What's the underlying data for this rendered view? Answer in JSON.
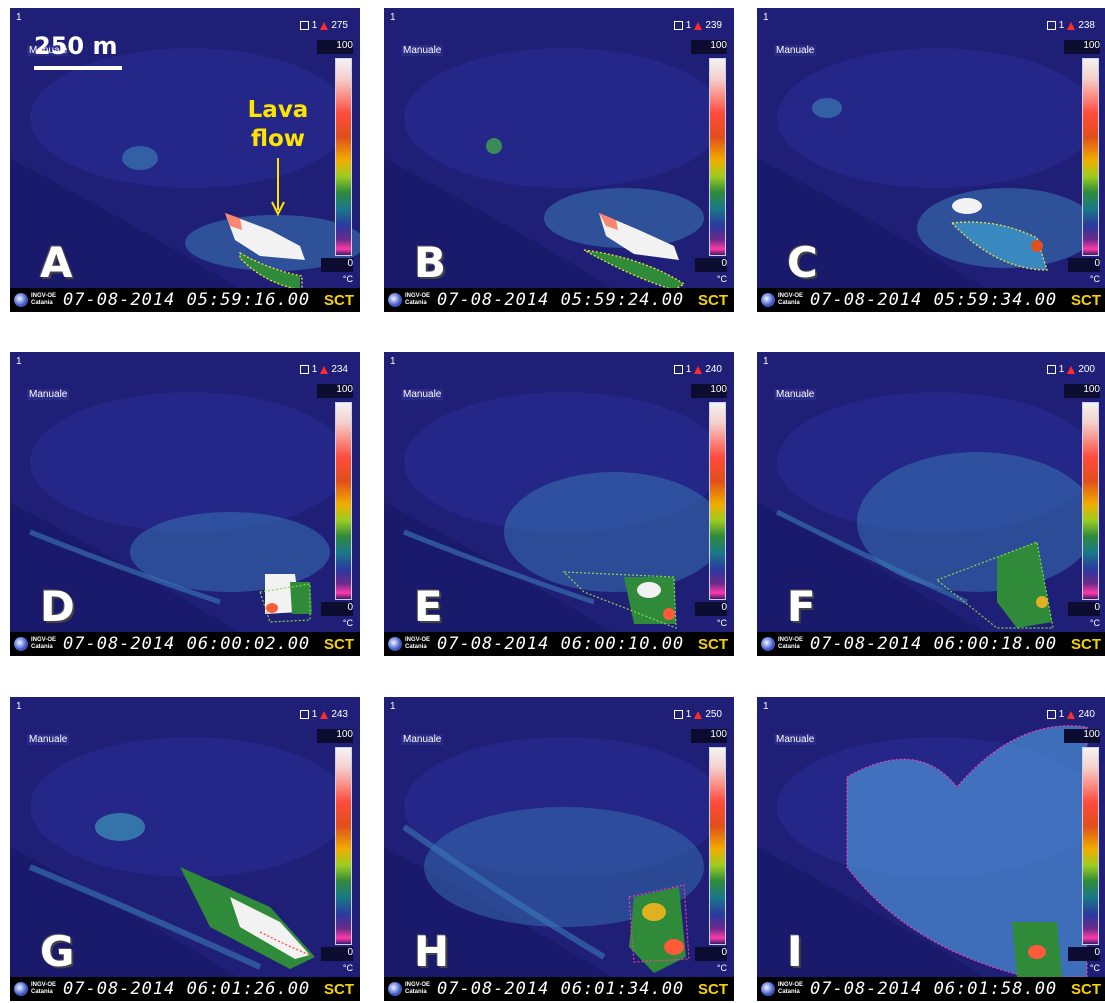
{
  "panels": [
    {
      "letter": "A",
      "camera": "1",
      "mode": "Manuale",
      "channel": "1",
      "max": "275",
      "scale_top": "100",
      "scale_bottom": "0",
      "unit": "°C",
      "org": "INGV-OE Catania",
      "timestamp": "07-08-2014 05:59:16.00",
      "station": "SCT"
    },
    {
      "letter": "B",
      "camera": "1",
      "mode": "Manuale",
      "channel": "1",
      "max": "239",
      "scale_top": "100",
      "scale_bottom": "0",
      "unit": "°C",
      "org": "INGV-OE Catania",
      "timestamp": "07-08-2014 05:59:24.00",
      "station": "SCT"
    },
    {
      "letter": "C",
      "camera": "1",
      "mode": "Manuale",
      "channel": "1",
      "max": "238",
      "scale_top": "100",
      "scale_bottom": "0",
      "unit": "°C",
      "org": "INGV-OE Catania",
      "timestamp": "07-08-2014 05:59:34.00",
      "station": "SCT"
    },
    {
      "letter": "D",
      "camera": "1",
      "mode": "Manuale",
      "channel": "1",
      "max": "234",
      "scale_top": "100",
      "scale_bottom": "0",
      "unit": "°C",
      "org": "INGV-OE Catania",
      "timestamp": "07-08-2014 06:00:02.00",
      "station": "SCT"
    },
    {
      "letter": "E",
      "camera": "1",
      "mode": "Manuale",
      "channel": "1",
      "max": "240",
      "scale_top": "100",
      "scale_bottom": "0",
      "unit": "°C",
      "org": "INGV-OE Catania",
      "timestamp": "07-08-2014 06:00:10.00",
      "station": "SCT"
    },
    {
      "letter": "F",
      "camera": "1",
      "mode": "Manuale",
      "channel": "1",
      "max": "200",
      "scale_top": "100",
      "scale_bottom": "0",
      "unit": "°C",
      "org": "INGV-OE Catania",
      "timestamp": "07-08-2014 06:00:18.00",
      "station": "SCT"
    },
    {
      "letter": "G",
      "camera": "1",
      "mode": "Manuale",
      "channel": "1",
      "max": "243",
      "scale_top": "100",
      "scale_bottom": "0",
      "unit": "°C",
      "org": "INGV-OE Catania",
      "timestamp": "07-08-2014 06:01:26.00",
      "station": "SCT"
    },
    {
      "letter": "H",
      "camera": "1",
      "mode": "Manuale",
      "channel": "1",
      "max": "250",
      "scale_top": "100",
      "scale_bottom": "0",
      "unit": "°C",
      "org": "INGV-OE Catania",
      "timestamp": "07-08-2014 06:01:34.00",
      "station": "SCT"
    },
    {
      "letter": "I",
      "camera": "1",
      "mode": "Manuale",
      "channel": "1",
      "max": "240",
      "scale_top": "100",
      "scale_bottom": "0",
      "unit": "°C",
      "org": "INGV-OE Catania",
      "timestamp": "07-08-2014 06:01:58.00",
      "station": "SCT"
    }
  ],
  "annotations": {
    "scale_bar_label": "250 m",
    "lava_flow_label": "Lava flow"
  },
  "colors": {
    "background": "#1e1f78",
    "lava_hot": "#f2f2f2",
    "label_yellow": "#ffe400",
    "outline_yellow": "#f0e040",
    "outline_green": "#8ad84a",
    "outline_pink": "#ff3aa8"
  }
}
